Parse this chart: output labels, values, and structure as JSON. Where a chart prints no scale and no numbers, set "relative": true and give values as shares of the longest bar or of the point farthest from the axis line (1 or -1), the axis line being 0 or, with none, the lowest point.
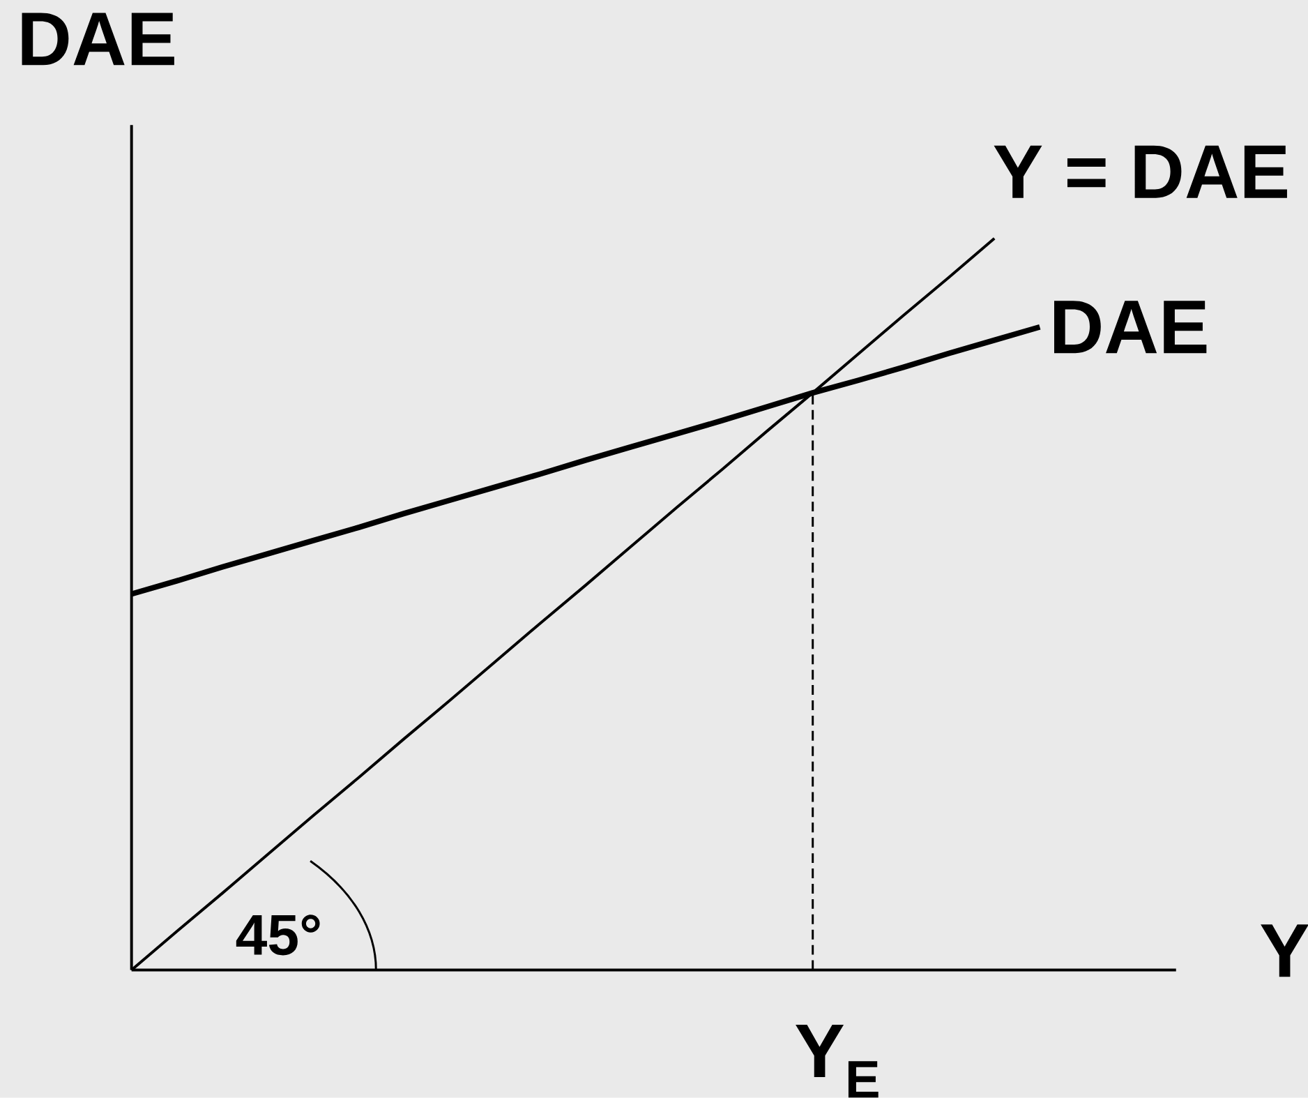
{
  "chart_data": {
    "type": "line",
    "xlabel": "Y",
    "ylabel": "DAE",
    "relative": true,
    "categories": [
      null,
      null,
      null,
      null,
      null,
      null,
      null,
      null,
      null,
      null,
      null,
      null,
      null,
      null,
      null,
      null,
      null,
      null,
      null,
      null,
      null,
      null,
      null,
      null
    ],
    "series": [
      {
        "name": "Y = DAE",
        "color": "#000000",
        "values": [
          0,
          0.053,
          0.105,
          0.158,
          0.211,
          0.263,
          0.316,
          0.368,
          0.421,
          0.474,
          0.526,
          0.579,
          0.632,
          0.684,
          0.737,
          0.789,
          0.842,
          0.895,
          0.947,
          1.0,
          null,
          null,
          null,
          null
        ]
      },
      {
        "name": "DAE",
        "color": "#000000",
        "values": [
          0.514,
          0.532,
          0.551,
          0.569,
          0.587,
          0.605,
          0.624,
          0.642,
          0.66,
          0.678,
          0.697,
          0.715,
          0.733,
          0.751,
          0.77,
          0.789,
          0.806,
          0.824,
          0.843,
          0.861,
          0.879,
          null,
          null,
          null
        ]
      }
    ],
    "annotations": [
      "45°",
      "Y$_{E}$"
    ],
    "line_style": "solid"
  }
}
